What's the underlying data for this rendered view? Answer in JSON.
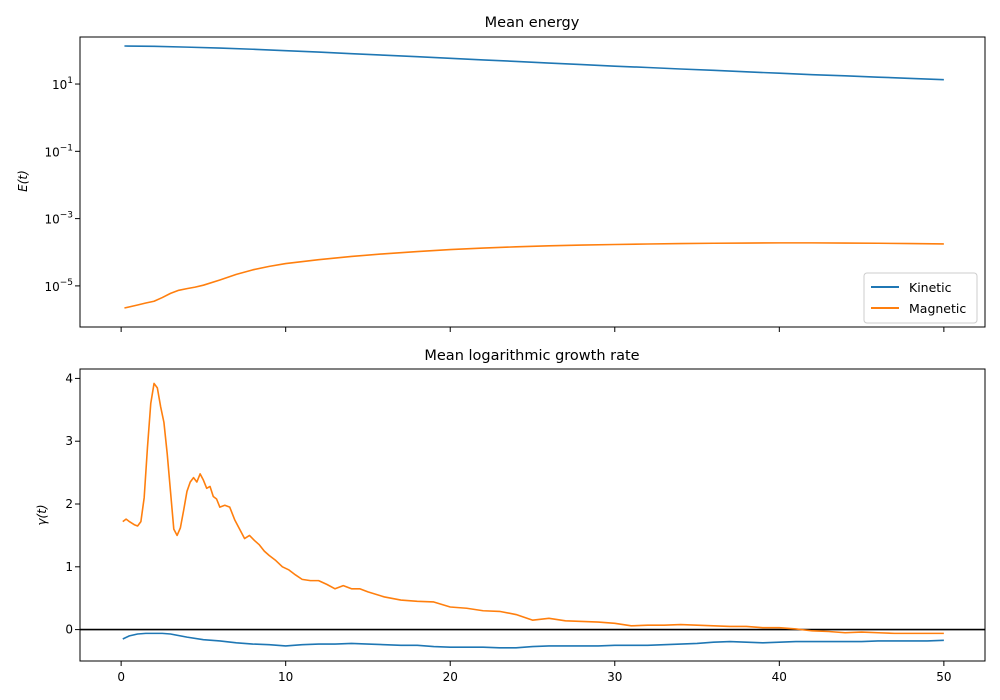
{
  "chart_data": [
    {
      "type": "line",
      "title": "Mean energy",
      "xlabel": "",
      "ylabel": "E(t)",
      "yscale": "log",
      "xlim": [
        -2.5,
        52.5
      ],
      "ylim": [
        6e-07,
        250
      ],
      "xticks": [
        0,
        10,
        20,
        30,
        40,
        50
      ],
      "yticks": [
        {
          "value": 10,
          "base": "10",
          "exp": "1"
        },
        {
          "value": 0.1,
          "base": "10",
          "exp": "−1"
        },
        {
          "value": 0.001,
          "base": "10",
          "exp": "−3"
        },
        {
          "value": 1e-05,
          "base": "10",
          "exp": "−5"
        }
      ],
      "legend": {
        "placement": "lower right",
        "entries": [
          "Kinetic",
          "Magnetic"
        ]
      },
      "series": [
        {
          "name": "Kinetic",
          "color": "#1f77b4",
          "x": [
            0.2,
            2,
            4,
            6,
            8,
            10,
            12,
            14,
            16,
            18,
            20,
            22,
            24,
            26,
            28,
            30,
            32,
            34,
            36,
            38,
            40,
            42,
            44,
            46,
            48,
            50
          ],
          "y": [
            135,
            132,
            125,
            117,
            108,
            98,
            89,
            80,
            72,
            65,
            58,
            52,
            47,
            42,
            38,
            34,
            31,
            28,
            25.5,
            23,
            21,
            19,
            17.5,
            16,
            14.7,
            13.5
          ]
        },
        {
          "name": "Magnetic",
          "color": "#ff7f0e",
          "x": [
            0.2,
            1,
            1.5,
            2,
            2.5,
            3,
            3.5,
            4,
            4.5,
            5,
            6,
            7,
            8,
            9,
            10,
            12,
            14,
            16,
            18,
            20,
            22,
            24,
            26,
            28,
            30,
            32,
            34,
            36,
            38,
            40,
            42,
            44,
            46,
            48,
            50
          ],
          "y": [
            2.2e-06,
            2.7e-06,
            3.1e-06,
            3.5e-06,
            4.5e-06,
            6e-06,
            7.4e-06,
            8.3e-06,
            9.2e-06,
            1.05e-05,
            1.5e-05,
            2.2e-05,
            3e-05,
            3.8e-05,
            4.6e-05,
            6e-05,
            7.5e-05,
            9e-05,
            0.000105,
            0.00012,
            0.000133,
            0.000145,
            0.000155,
            0.000163,
            0.00017,
            0.000176,
            0.000181,
            0.000185,
            0.000188,
            0.00019,
            0.00019,
            0.000188,
            0.000185,
            0.000181,
            0.000177
          ]
        }
      ]
    },
    {
      "type": "line",
      "title": "Mean logarithmic growth rate",
      "xlabel": "",
      "ylabel": "γ(t)",
      "yscale": "linear",
      "xlim": [
        -2.5,
        52.5
      ],
      "ylim": [
        -0.5,
        4.15
      ],
      "xticks": [
        0,
        10,
        20,
        30,
        40,
        50
      ],
      "yticks": [
        0,
        1,
        2,
        3,
        4
      ],
      "hline": {
        "y": 0,
        "color": "#000000"
      },
      "series": [
        {
          "name": "Kinetic",
          "color": "#1f77b4",
          "x": [
            0.1,
            0.5,
            1,
            1.5,
            2,
            2.5,
            3,
            4,
            5,
            6,
            7,
            8,
            9,
            10,
            11,
            12,
            13,
            14,
            15,
            16,
            17,
            18,
            19,
            20,
            21,
            22,
            23,
            24,
            25,
            26,
            27,
            28,
            29,
            30,
            31,
            32,
            33,
            34,
            35,
            36,
            37,
            38,
            39,
            40,
            41,
            42,
            43,
            44,
            45,
            46,
            47,
            48,
            49,
            50
          ],
          "y": [
            -0.15,
            -0.1,
            -0.07,
            -0.06,
            -0.06,
            -0.06,
            -0.07,
            -0.12,
            -0.16,
            -0.18,
            -0.21,
            -0.23,
            -0.24,
            -0.26,
            -0.24,
            -0.23,
            -0.23,
            -0.22,
            -0.23,
            -0.24,
            -0.25,
            -0.25,
            -0.27,
            -0.28,
            -0.28,
            -0.28,
            -0.29,
            -0.29,
            -0.27,
            -0.26,
            -0.26,
            -0.26,
            -0.26,
            -0.25,
            -0.25,
            -0.25,
            -0.24,
            -0.23,
            -0.22,
            -0.2,
            -0.19,
            -0.2,
            -0.21,
            -0.2,
            -0.19,
            -0.19,
            -0.19,
            -0.19,
            -0.19,
            -0.18,
            -0.18,
            -0.18,
            -0.18,
            -0.17
          ]
        },
        {
          "name": "Magnetic",
          "color": "#ff7f0e",
          "x": [
            0.1,
            0.3,
            0.5,
            0.8,
            1.0,
            1.2,
            1.4,
            1.6,
            1.8,
            2.0,
            2.2,
            2.4,
            2.6,
            2.8,
            3.0,
            3.2,
            3.4,
            3.6,
            3.8,
            4.0,
            4.2,
            4.4,
            4.6,
            4.8,
            5.0,
            5.2,
            5.4,
            5.6,
            5.8,
            6.0,
            6.3,
            6.6,
            6.9,
            7.2,
            7.5,
            7.8,
            8.1,
            8.4,
            8.7,
            9.0,
            9.4,
            9.8,
            10.2,
            10.6,
            11.0,
            11.5,
            12.0,
            12.5,
            13.0,
            13.5,
            14.0,
            14.5,
            15.0,
            16,
            17,
            18,
            19,
            20,
            21,
            22,
            23,
            24,
            25,
            26,
            27,
            28,
            29,
            30,
            31,
            32,
            33,
            34,
            35,
            36,
            37,
            38,
            39,
            40,
            41,
            42,
            43,
            44,
            45,
            46,
            47,
            48,
            49,
            50
          ],
          "y": [
            1.72,
            1.76,
            1.72,
            1.67,
            1.65,
            1.72,
            2.1,
            2.9,
            3.6,
            3.92,
            3.85,
            3.55,
            3.3,
            2.8,
            2.2,
            1.6,
            1.5,
            1.62,
            1.9,
            2.2,
            2.35,
            2.42,
            2.35,
            2.48,
            2.38,
            2.25,
            2.28,
            2.12,
            2.08,
            1.95,
            1.98,
            1.95,
            1.75,
            1.6,
            1.45,
            1.5,
            1.42,
            1.35,
            1.25,
            1.18,
            1.1,
            1.0,
            0.95,
            0.87,
            0.8,
            0.78,
            0.78,
            0.72,
            0.65,
            0.7,
            0.65,
            0.65,
            0.6,
            0.52,
            0.47,
            0.45,
            0.44,
            0.36,
            0.34,
            0.3,
            0.29,
            0.24,
            0.15,
            0.18,
            0.14,
            0.13,
            0.12,
            0.1,
            0.06,
            0.07,
            0.07,
            0.08,
            0.07,
            0.06,
            0.05,
            0.05,
            0.03,
            0.03,
            0.01,
            -0.02,
            -0.03,
            -0.05,
            -0.04,
            -0.05,
            -0.06,
            -0.06,
            -0.06,
            -0.06
          ]
        }
      ]
    }
  ]
}
